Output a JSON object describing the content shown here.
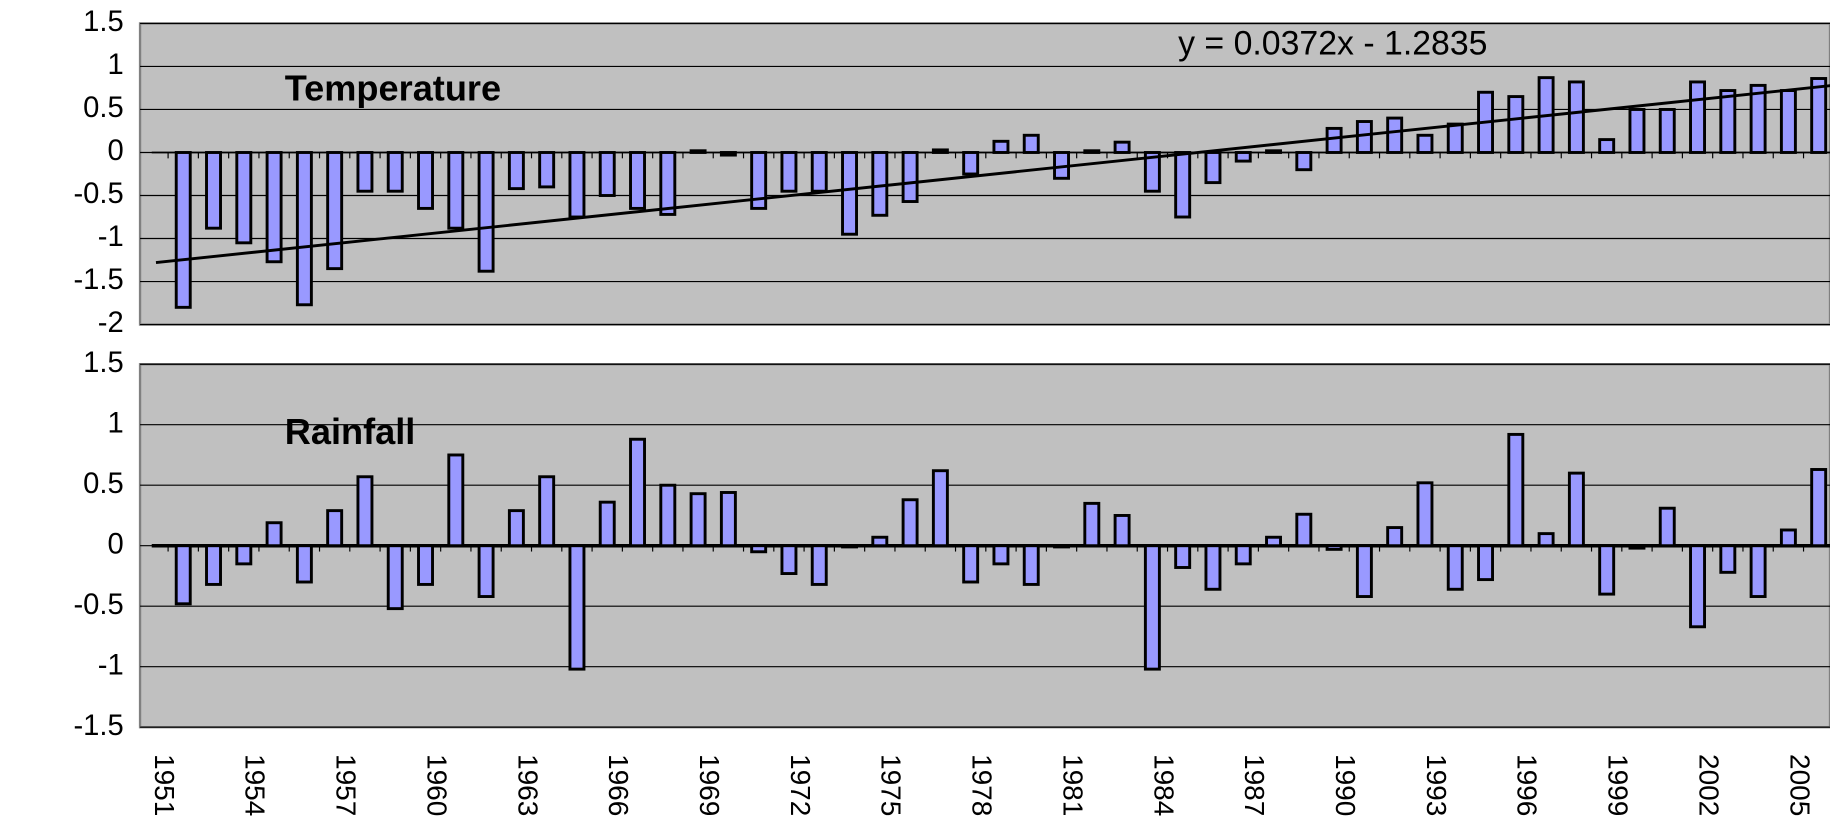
{
  "chart_data": [
    {
      "type": "bar",
      "title": "Temperature",
      "color": "#9999ff",
      "values": [
        -1.8,
        -0.88,
        -1.05,
        -1.27,
        -1.77,
        -1.35,
        -0.45,
        -0.45,
        -0.65,
        -0.88,
        -1.38,
        -0.42,
        -0.4,
        -0.75,
        -0.5,
        -0.65,
        -0.72,
        0.02,
        -0.03,
        -0.65,
        -0.45,
        -0.45,
        -0.95,
        -0.73,
        -0.57,
        0.03,
        -0.25,
        0.13,
        0.2,
        -0.3,
        0.02,
        0.12,
        -0.45,
        -0.75,
        -0.35,
        -0.1,
        0.02,
        -0.2,
        0.28,
        0.36,
        0.4,
        0.2,
        0.33,
        0.7,
        0.65,
        0.87,
        0.82,
        0.15,
        0.5,
        0.5,
        0.82,
        0.72,
        0.78,
        0.72,
        0.86
      ],
      "ylim": [
        -2,
        1.5
      ],
      "yticks": [
        1.5,
        1,
        0.5,
        0,
        -0.5,
        -1,
        -1.5,
        -2
      ],
      "grid": true,
      "trendline": {
        "slope": 0.0372,
        "intercept": -1.2835,
        "label": "y = 0.0372x - 1.2835"
      }
    },
    {
      "type": "bar",
      "title": "Rainfall",
      "color": "#9999ff",
      "categories": [
        "1951",
        null,
        null,
        "1954",
        null,
        null,
        "1957",
        null,
        null,
        "1960",
        null,
        null,
        "1963",
        null,
        null,
        "1966",
        null,
        null,
        "1969",
        null,
        null,
        "1972",
        null,
        null,
        "1975",
        null,
        null,
        "1978",
        null,
        null,
        "1981",
        null,
        null,
        "1984",
        null,
        null,
        "1987",
        null,
        null,
        "1990",
        null,
        null,
        "1993",
        null,
        null,
        "1996",
        null,
        null,
        "1999",
        null,
        null,
        "2002",
        null,
        null,
        "2005"
      ],
      "values": [
        -0.48,
        -0.32,
        -0.15,
        0.19,
        -0.3,
        0.29,
        0.57,
        -0.52,
        -0.32,
        0.75,
        -0.42,
        0.29,
        0.57,
        -1.02,
        0.36,
        0.88,
        0.5,
        0.43,
        0.44,
        -0.05,
        -0.23,
        -0.32,
        -0.01,
        0.07,
        0.38,
        0.62,
        -0.3,
        -0.15,
        -0.32,
        -0.01,
        0.35,
        0.25,
        -1.02,
        -0.18,
        -0.36,
        -0.15,
        0.07,
        0.26,
        -0.03,
        -0.42,
        0.15,
        0.52,
        -0.36,
        -0.28,
        0.92,
        0.1,
        0.6,
        -0.4,
        -0.02,
        0.31,
        -0.67,
        -0.22,
        -0.42,
        0.13,
        0.63
      ],
      "ylim": [
        -1.5,
        1.5
      ],
      "yticks": [
        1.5,
        1,
        0.5,
        0,
        -0.5,
        -1,
        -1.5
      ],
      "grid": true
    }
  ]
}
